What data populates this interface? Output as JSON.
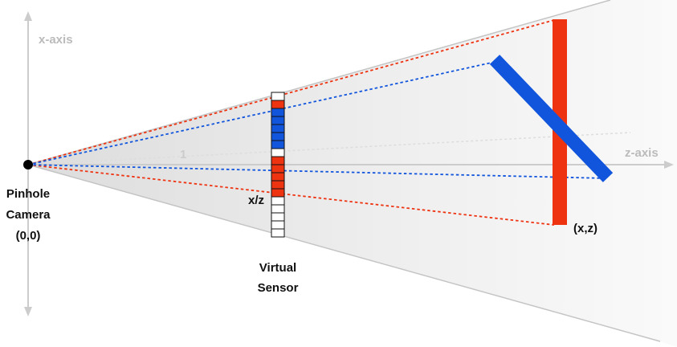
{
  "labels": {
    "x_axis": "x-axis",
    "z_axis": "z-axis",
    "one": "1",
    "x_over_z": "x/z",
    "point": "(x,z)",
    "camera_line1": "Pinhole",
    "camera_line2": "Camera",
    "camera_line3": "(0,0)",
    "sensor_line1": "Virtual",
    "sensor_line2": "Sensor"
  },
  "sensor_cells": [
    "white",
    "red",
    "blue",
    "blue",
    "blue",
    "blue",
    "blue",
    "white",
    "red",
    "red",
    "red",
    "red",
    "red",
    "white",
    "white",
    "white",
    "white",
    "white"
  ],
  "colors": {
    "red": "#ee3311",
    "blue": "#1155dd",
    "axis": "#cccccc",
    "axis_label": "#bbbbbb",
    "frustum_edge": "#c4c4c4",
    "text": "#111111"
  }
}
